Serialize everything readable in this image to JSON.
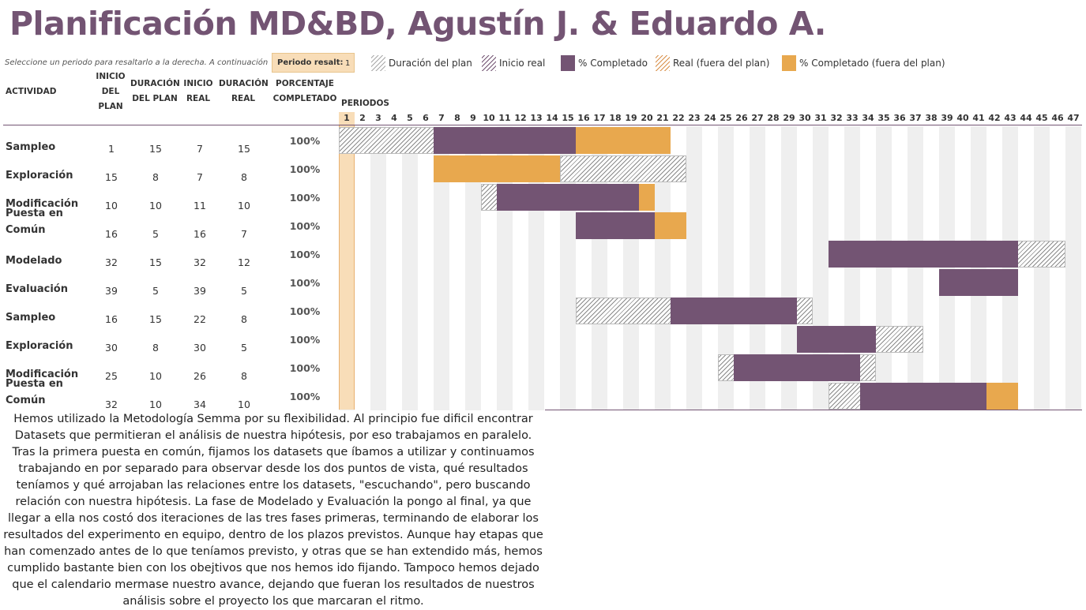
{
  "header": {
    "title": "Planificación MD&BD, Agustín J. & Eduardo A.",
    "subtitle": "Seleccione un periodo para resaltarlo a la derecha.  A continuación",
    "period_label": "Periodo resalt:",
    "period_value": "1"
  },
  "legend": [
    {
      "label": "Duración del plan",
      "icon": "hatch-gray-swatch"
    },
    {
      "label": "Inicio real",
      "icon": "hatch-purple-swatch"
    },
    {
      "label": "% Completado",
      "icon": "solid-purple-swatch"
    },
    {
      "label": "Real (fuera del plan)",
      "icon": "hatch-orange-swatch"
    },
    {
      "label": "% Completado (fuera del plan)",
      "icon": "solid-orange-swatch"
    }
  ],
  "columns": {
    "actividad": "ACTIVIDAD",
    "inicio_plan": "INICIO DEL PLAN",
    "duracion_plan": "DURACIÓN DEL PLAN",
    "inicio_real": "INICIO REAL",
    "duracion_real": "DURACIÓN REAL",
    "porcentaje": "PORCENTAJE COMPLETADO",
    "periodos": "PERIODOS"
  },
  "highlighted_period": 1,
  "period_count": 47,
  "rows": [
    {
      "name": "Sampleo",
      "plan_start": 1,
      "plan_dur": 15,
      "real_start": 7,
      "real_dur": 15,
      "pct": "100%"
    },
    {
      "name": "Exploración",
      "plan_start": 15,
      "plan_dur": 8,
      "real_start": 7,
      "real_dur": 8,
      "pct": "100%"
    },
    {
      "name": "Modificación",
      "plan_start": 10,
      "plan_dur": 10,
      "real_start": 11,
      "real_dur": 10,
      "pct": "100%"
    },
    {
      "name": "Puesta en Común",
      "plan_start": 16,
      "plan_dur": 5,
      "real_start": 16,
      "real_dur": 7,
      "pct": "100%"
    },
    {
      "name": "Modelado",
      "plan_start": 32,
      "plan_dur": 15,
      "real_start": 32,
      "real_dur": 12,
      "pct": "100%"
    },
    {
      "name": "Evaluación",
      "plan_start": 39,
      "plan_dur": 5,
      "real_start": 39,
      "real_dur": 5,
      "pct": "100%"
    },
    {
      "name": "Sampleo",
      "plan_start": 16,
      "plan_dur": 15,
      "real_start": 22,
      "real_dur": 8,
      "pct": "100%"
    },
    {
      "name": "Exploración",
      "plan_start": 30,
      "plan_dur": 8,
      "real_start": 30,
      "real_dur": 5,
      "pct": "100%"
    },
    {
      "name": "Modificación",
      "plan_start": 25,
      "plan_dur": 10,
      "real_start": 26,
      "real_dur": 8,
      "pct": "100%"
    },
    {
      "name": "Puesta en Común",
      "plan_start": 32,
      "plan_dur": 10,
      "real_start": 34,
      "real_dur": 10,
      "pct": "100%"
    }
  ],
  "colors": {
    "accent": "#735473",
    "out_of_plan": "#E8A84E",
    "highlight": "#F8DDB8"
  },
  "notes": "Hemos utilizado la Metodología Semma por su flexibilidad. Al principio fue dificil encontrar Datasets que permitieran el análisis de nuestra hipótesis, por eso trabajamos en paralelo. Tras la primera puesta en común, fijamos los datasets que íbamos a utilizar y continuamos trabajando en por separado para observar desde los dos puntos de vista, qué resultados teníamos y qué arrojaban las relaciones entre los datasets, \"escuchando\", pero buscando relación con nuestra hipótesis. La fase de Modelado y Evaluación la pongo al final, ya que llegar a ella nos costó dos iteraciones de las tres fases primeras, terminando de elaborar los resultados del experimento en equipo, dentro de los plazos previstos. Aunque hay etapas que han comenzado antes de lo que teníamos previsto, y otras que se han extendido más, hemos cumplido bastante bien con los obejtivos que nos hemos ido fijando. Tampoco hemos dejado que el calendario mermase nuestro avance, dejando que fueran los resultados de nuestros análisis sobre el proyecto los que marcaran el ritmo."
}
